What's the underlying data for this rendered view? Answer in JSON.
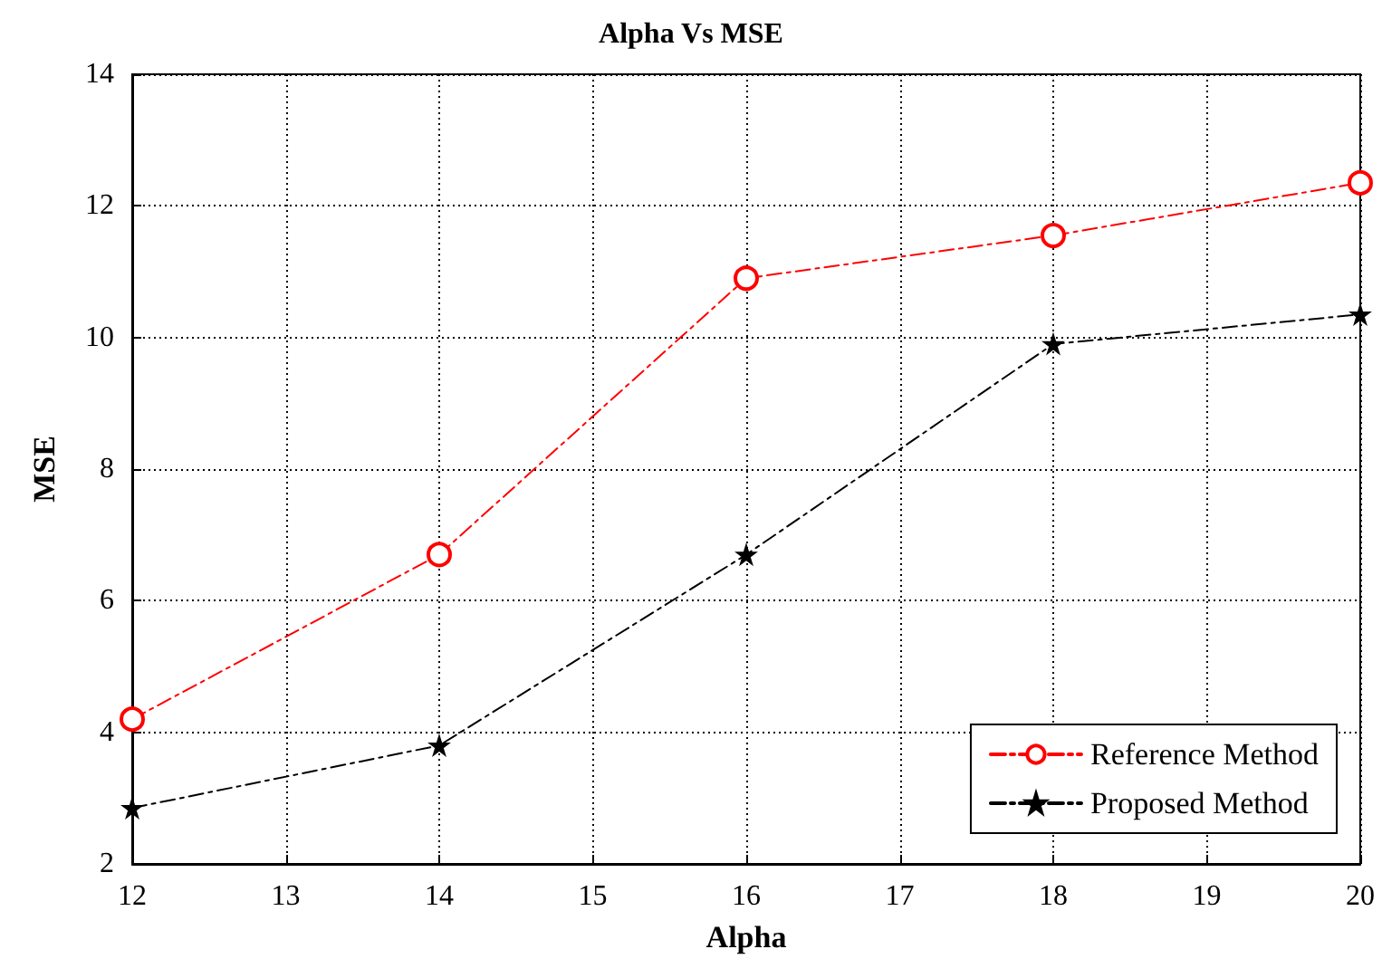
{
  "chart_data": {
    "type": "line",
    "title": "Alpha Vs MSE",
    "xlabel": "Alpha",
    "ylabel": "MSE",
    "x": [
      12,
      14,
      16,
      18,
      20
    ],
    "series": [
      {
        "name": "Reference Method",
        "color": "#ff0000",
        "marker": "circle",
        "values": [
          4.2,
          6.7,
          10.9,
          11.55,
          12.35
        ]
      },
      {
        "name": "Proposed Method",
        "color": "#000000",
        "marker": "star",
        "values": [
          2.85,
          3.8,
          6.7,
          9.9,
          10.35
        ]
      }
    ],
    "xlim": [
      12,
      20
    ],
    "xticks": [
      12,
      13,
      14,
      15,
      16,
      17,
      18,
      19,
      20
    ],
    "ylim": [
      2,
      14
    ],
    "yticks": [
      2,
      4,
      6,
      8,
      10,
      12,
      14
    ],
    "grid": true,
    "legend": "bottom right",
    "line_style": "dashed"
  }
}
